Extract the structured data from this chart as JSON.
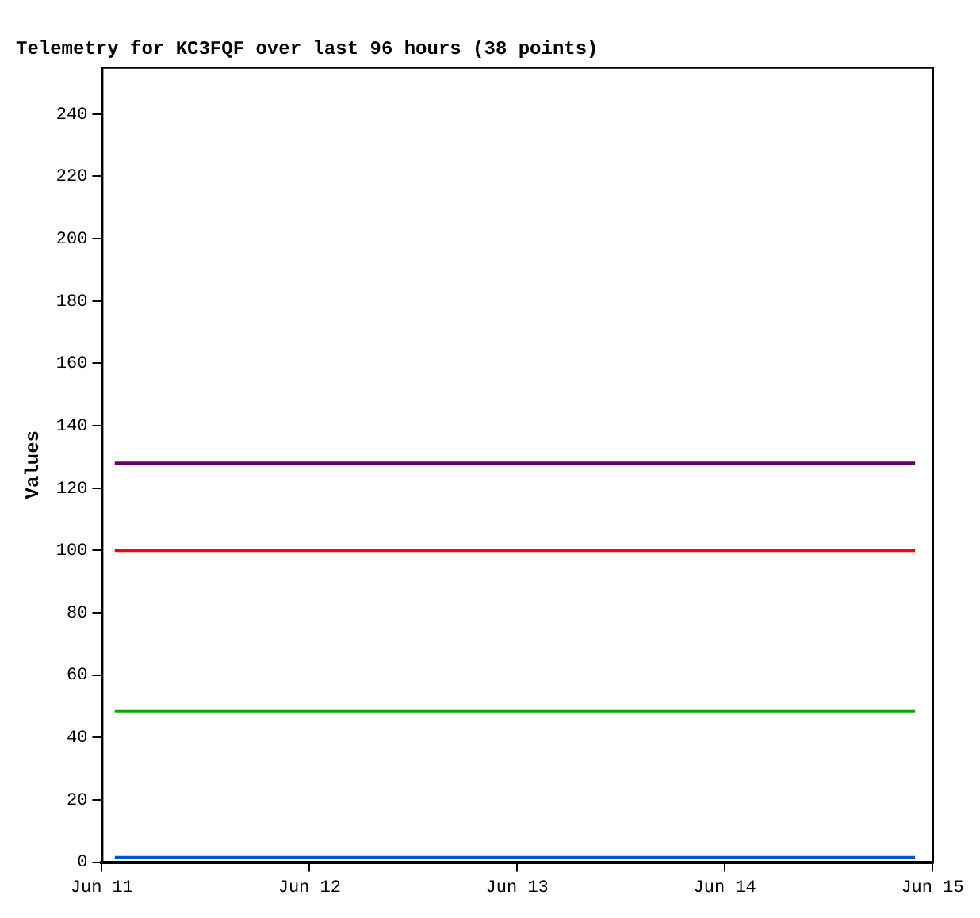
{
  "chart_data": {
    "type": "line",
    "title": "Telemetry for KC3FQF over last 96 hours (38 points)",
    "ylabel": "Values",
    "xlim": [
      "--06-11",
      "--06-15"
    ],
    "xticks": [
      {
        "value": "--06-11",
        "label": "Jun 11"
      },
      {
        "value": "--06-12",
        "label": "Jun 12"
      },
      {
        "value": "--06-13",
        "label": "Jun 13"
      },
      {
        "value": "--06-14",
        "label": "Jun 14"
      },
      {
        "value": "--06-15",
        "label": "Jun 15"
      }
    ],
    "ylim": [
      0,
      255
    ],
    "yticks": [
      0,
      20,
      40,
      60,
      80,
      100,
      120,
      140,
      160,
      180,
      200,
      220,
      240
    ],
    "grid": false,
    "legend": false,
    "marker": "none",
    "line_style": "solid",
    "series": [
      {
        "color": "#660066",
        "x": [
          "--06-11T01:30",
          "--06-14T22:00"
        ],
        "values": [
          128,
          128
        ]
      },
      {
        "color": "#ff0000",
        "x": [
          "--06-11T01:30",
          "--06-14T22:00"
        ],
        "values": [
          100,
          100
        ]
      },
      {
        "color": "#00aa00",
        "x": [
          "--06-11T01:30",
          "--06-14T22:00"
        ],
        "values": [
          48.5,
          48.5
        ]
      },
      {
        "color": "#0055cc",
        "x": [
          "--06-11T01:30",
          "--06-14T22:00"
        ],
        "values": [
          1.5,
          1.5
        ]
      }
    ]
  }
}
